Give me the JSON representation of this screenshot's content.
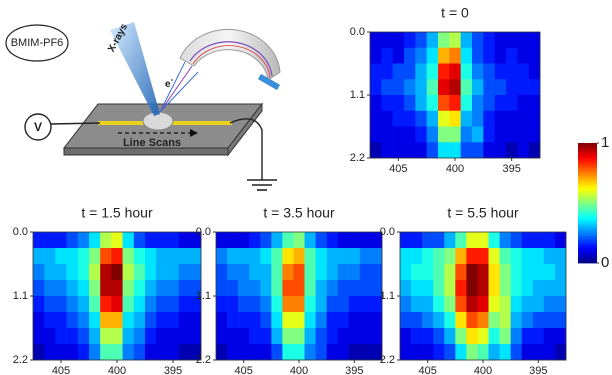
{
  "schematic": {
    "sample": "BMIM-PF6",
    "xrays": "X-rays",
    "electron": "e",
    "electron_sup": "-",
    "voltage": "V",
    "scan": "Line Scans"
  },
  "colorbar": {
    "colormap": "jet",
    "clim": [
      0,
      1
    ],
    "ticks": [
      0,
      1
    ]
  },
  "chart_data": [
    {
      "type": "heatmap",
      "title": "t = 0",
      "xbins": [
        407.5,
        406.5,
        405.5,
        404.5,
        403.5,
        402.5,
        401.5,
        400.5,
        399.5,
        398.5,
        397.5,
        396.5,
        395.5,
        394.5,
        393.5,
        392.5
      ],
      "ybins": [
        0,
        0.275,
        0.55,
        0.825,
        1.1,
        1.375,
        1.65,
        1.925,
        2.2
      ],
      "xlim": [
        407.5,
        392.5
      ],
      "ylim": [
        0,
        2.2
      ],
      "xticks": [
        405,
        400,
        395
      ],
      "yticks": [
        {
          "value": 0,
          "label": "0.0"
        },
        1.1,
        2.2
      ],
      "values": [
        [
          0.1,
          0.1,
          0.1,
          0.15,
          0.2,
          0.3,
          0.5,
          0.55,
          0.3,
          0.2,
          0.15,
          0.1,
          0.1,
          0.1,
          0.1
        ],
        [
          0.1,
          0.15,
          0.1,
          0.2,
          0.25,
          0.35,
          0.7,
          0.75,
          0.35,
          0.2,
          0.15,
          0.1,
          0.15,
          0.1,
          0.1
        ],
        [
          0.15,
          0.15,
          0.2,
          0.2,
          0.3,
          0.4,
          0.85,
          0.9,
          0.4,
          0.25,
          0.2,
          0.15,
          0.15,
          0.15,
          0.1
        ],
        [
          0.15,
          0.2,
          0.2,
          0.25,
          0.3,
          0.45,
          0.9,
          0.95,
          0.45,
          0.3,
          0.2,
          0.2,
          0.15,
          0.15,
          0.15
        ],
        [
          0.1,
          0.15,
          0.15,
          0.2,
          0.3,
          0.4,
          0.8,
          0.85,
          0.4,
          0.25,
          0.2,
          0.15,
          0.15,
          0.1,
          0.1
        ],
        [
          0.1,
          0.1,
          0.15,
          0.15,
          0.2,
          0.3,
          0.6,
          0.65,
          0.3,
          0.25,
          0.15,
          0.1,
          0.1,
          0.1,
          0.1
        ],
        [
          0.1,
          0.1,
          0.1,
          0.1,
          0.15,
          0.25,
          0.5,
          0.5,
          0.25,
          0.3,
          0.15,
          0.1,
          0.1,
          0.1,
          0.1
        ],
        [
          0.05,
          0.1,
          0.1,
          0.1,
          0.1,
          0.2,
          0.35,
          0.35,
          0.2,
          0.2,
          0.1,
          0.1,
          0.05,
          0.1,
          0.05
        ]
      ]
    },
    {
      "type": "heatmap",
      "title": "t = 1.5 hour",
      "xbins": [
        407.5,
        406.5,
        405.5,
        404.5,
        403.5,
        402.5,
        401.5,
        400.5,
        399.5,
        398.5,
        397.5,
        396.5,
        395.5,
        394.5,
        393.5,
        392.5
      ],
      "ybins": [
        0,
        0.275,
        0.55,
        0.825,
        1.1,
        1.375,
        1.65,
        1.925,
        2.2
      ],
      "xlim": [
        407.5,
        392.5
      ],
      "ylim": [
        0,
        2.2
      ],
      "xticks": [
        405,
        400,
        395
      ],
      "yticks": [
        {
          "value": 0,
          "label": "0.0"
        },
        1.1,
        2.2
      ],
      "values": [
        [
          0.15,
          0.15,
          0.15,
          0.2,
          0.25,
          0.35,
          0.55,
          0.6,
          0.35,
          0.2,
          0.15,
          0.15,
          0.15,
          0.1,
          0.1
        ],
        [
          0.3,
          0.3,
          0.35,
          0.35,
          0.4,
          0.5,
          0.8,
          0.85,
          0.5,
          0.4,
          0.35,
          0.3,
          0.3,
          0.3,
          0.3
        ],
        [
          0.25,
          0.3,
          0.3,
          0.35,
          0.4,
          0.55,
          0.95,
          1,
          0.55,
          0.45,
          0.35,
          0.3,
          0.3,
          0.25,
          0.25
        ],
        [
          0.2,
          0.25,
          0.25,
          0.3,
          0.35,
          0.5,
          0.95,
          0.95,
          0.5,
          0.4,
          0.3,
          0.25,
          0.25,
          0.2,
          0.2
        ],
        [
          0.15,
          0.2,
          0.2,
          0.25,
          0.3,
          0.45,
          0.85,
          0.9,
          0.45,
          0.35,
          0.25,
          0.2,
          0.2,
          0.15,
          0.15
        ],
        [
          0.1,
          0.15,
          0.15,
          0.2,
          0.25,
          0.35,
          0.7,
          0.7,
          0.35,
          0.3,
          0.2,
          0.15,
          0.15,
          0.1,
          0.1
        ],
        [
          0.1,
          0.1,
          0.15,
          0.15,
          0.2,
          0.3,
          0.55,
          0.55,
          0.3,
          0.25,
          0.15,
          0.1,
          0.1,
          0.1,
          0.1
        ],
        [
          0.05,
          0.1,
          0.1,
          0.1,
          0.15,
          0.25,
          0.45,
          0.45,
          0.25,
          0.2,
          0.1,
          0.1,
          0.1,
          0.05,
          0.05
        ]
      ]
    },
    {
      "type": "heatmap",
      "title": "t = 3.5 hour",
      "xbins": [
        407.5,
        406.5,
        405.5,
        404.5,
        403.5,
        402.5,
        401.5,
        400.5,
        399.5,
        398.5,
        397.5,
        396.5,
        395.5,
        394.5,
        393.5,
        392.5
      ],
      "ybins": [
        0,
        0.275,
        0.55,
        0.825,
        1.1,
        1.375,
        1.65,
        1.925,
        2.2
      ],
      "xlim": [
        407.5,
        392.5
      ],
      "ylim": [
        0,
        2.2
      ],
      "xticks": [
        405,
        400,
        395
      ],
      "yticks": [
        {
          "value": 0,
          "label": "0.0"
        },
        1.1,
        2.2
      ],
      "values": [
        [
          0.1,
          0.1,
          0.1,
          0.15,
          0.2,
          0.3,
          0.45,
          0.5,
          0.3,
          0.2,
          0.15,
          0.1,
          0.1,
          0.1,
          0.1
        ],
        [
          0.25,
          0.3,
          0.3,
          0.3,
          0.35,
          0.45,
          0.65,
          0.7,
          0.45,
          0.35,
          0.3,
          0.3,
          0.3,
          0.25,
          0.25
        ],
        [
          0.2,
          0.25,
          0.25,
          0.3,
          0.3,
          0.45,
          0.75,
          0.8,
          0.45,
          0.35,
          0.3,
          0.25,
          0.25,
          0.2,
          0.2
        ],
        [
          0.2,
          0.2,
          0.25,
          0.25,
          0.3,
          0.45,
          0.8,
          0.8,
          0.45,
          0.3,
          0.25,
          0.2,
          0.2,
          0.2,
          0.2
        ],
        [
          0.15,
          0.15,
          0.2,
          0.2,
          0.25,
          0.4,
          0.75,
          0.75,
          0.4,
          0.3,
          0.2,
          0.2,
          0.15,
          0.15,
          0.15
        ],
        [
          0.1,
          0.15,
          0.15,
          0.15,
          0.2,
          0.35,
          0.6,
          0.6,
          0.35,
          0.25,
          0.15,
          0.15,
          0.1,
          0.1,
          0.1
        ],
        [
          0.1,
          0.1,
          0.1,
          0.15,
          0.15,
          0.3,
          0.5,
          0.5,
          0.3,
          0.2,
          0.15,
          0.1,
          0.1,
          0.1,
          0.1
        ],
        [
          0.05,
          0.1,
          0.1,
          0.1,
          0.1,
          0.2,
          0.4,
          0.4,
          0.25,
          0.2,
          0.1,
          0.1,
          0.05,
          0.05,
          0.05
        ]
      ]
    },
    {
      "type": "heatmap",
      "title": "t = 5.5 hour",
      "xbins": [
        407.5,
        406.5,
        405.5,
        404.5,
        403.5,
        402.5,
        401.5,
        400.5,
        399.5,
        398.5,
        397.5,
        396.5,
        395.5,
        394.5,
        393.5,
        392.5
      ],
      "ybins": [
        0,
        0.275,
        0.55,
        0.825,
        1.1,
        1.375,
        1.65,
        1.925,
        2.2
      ],
      "xlim": [
        407.5,
        392.5
      ],
      "ylim": [
        0,
        2.2
      ],
      "xticks": [
        405,
        400,
        395
      ],
      "yticks": [
        {
          "value": 0,
          "label": "0.0"
        },
        1.1,
        2.2
      ],
      "values": [
        [
          0.15,
          0.15,
          0.2,
          0.2,
          0.3,
          0.45,
          0.6,
          0.6,
          0.4,
          0.25,
          0.2,
          0.15,
          0.15,
          0.15,
          0.1
        ],
        [
          0.35,
          0.35,
          0.4,
          0.45,
          0.5,
          0.7,
          0.85,
          0.85,
          0.6,
          0.45,
          0.4,
          0.35,
          0.35,
          0.3,
          0.3
        ],
        [
          0.35,
          0.4,
          0.4,
          0.45,
          0.55,
          0.8,
          1,
          0.95,
          0.65,
          0.5,
          0.4,
          0.35,
          0.35,
          0.35,
          0.3
        ],
        [
          0.3,
          0.35,
          0.35,
          0.45,
          0.55,
          0.85,
          1,
          0.95,
          0.65,
          0.5,
          0.4,
          0.35,
          0.3,
          0.3,
          0.3
        ],
        [
          0.25,
          0.3,
          0.3,
          0.4,
          0.5,
          0.8,
          0.95,
          0.9,
          0.6,
          0.55,
          0.35,
          0.3,
          0.3,
          0.25,
          0.25
        ],
        [
          0.2,
          0.2,
          0.25,
          0.3,
          0.4,
          0.65,
          0.8,
          0.75,
          0.5,
          0.55,
          0.3,
          0.25,
          0.2,
          0.2,
          0.2
        ],
        [
          0.1,
          0.15,
          0.15,
          0.2,
          0.3,
          0.5,
          0.65,
          0.6,
          0.4,
          0.5,
          0.25,
          0.15,
          0.15,
          0.1,
          0.1
        ],
        [
          0.1,
          0.1,
          0.1,
          0.15,
          0.2,
          0.35,
          0.5,
          0.45,
          0.3,
          0.35,
          0.2,
          0.1,
          0.1,
          0.1,
          0.05
        ]
      ]
    }
  ]
}
